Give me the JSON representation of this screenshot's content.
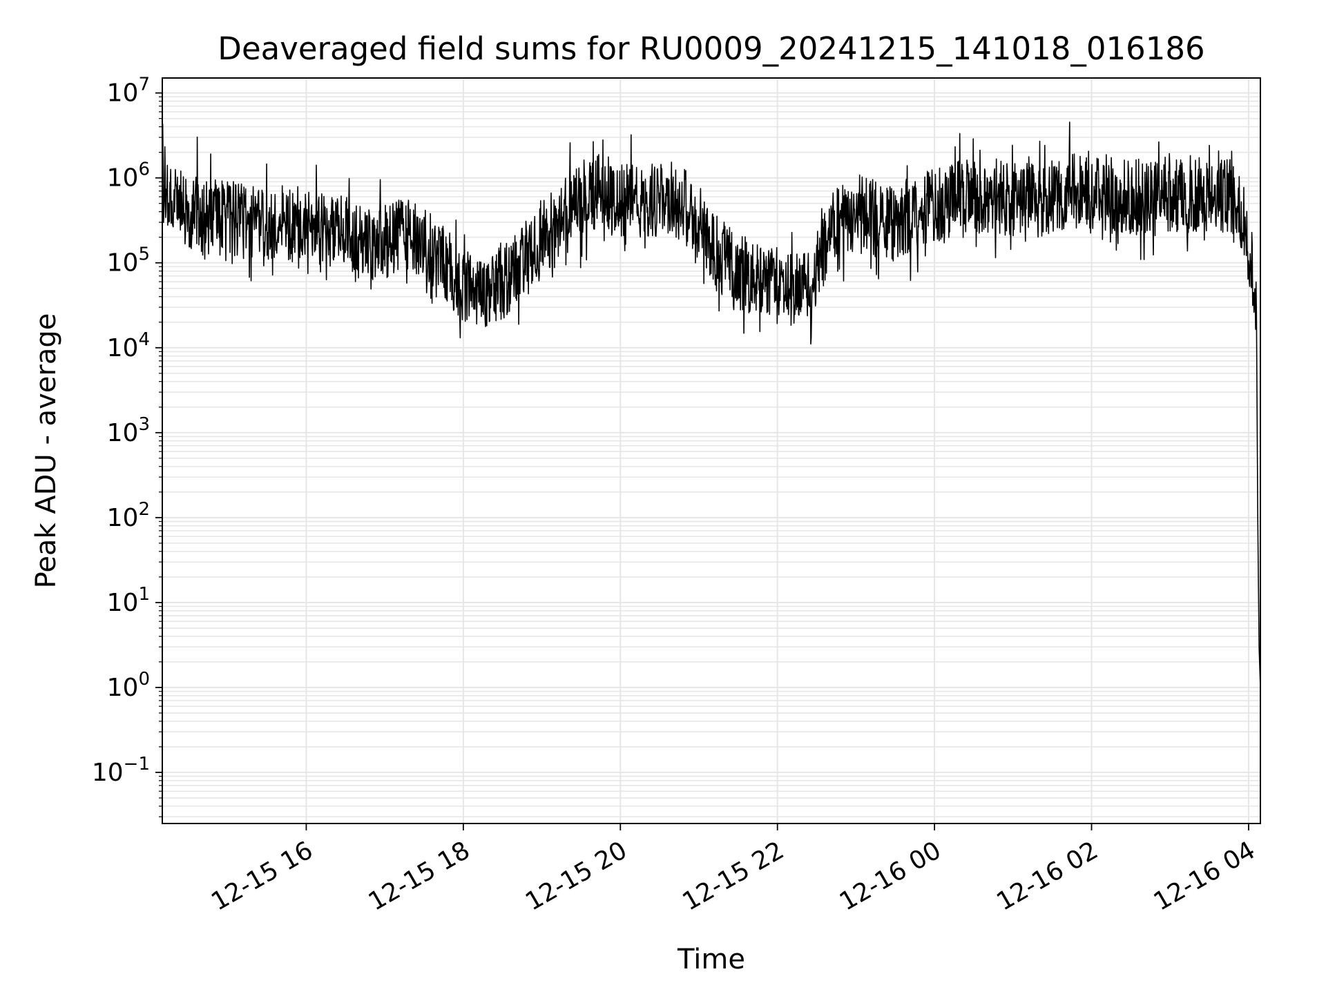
{
  "chart_data": {
    "type": "line",
    "title": "Deaveraged field sums for RU0009_20241215_141018_016186",
    "xlabel": "Time",
    "ylabel": "Peak ADU - average",
    "yscale": "log",
    "grid": true,
    "line_color": "#000000",
    "grid_color": "#e6e6e6",
    "x_tick_labels": [
      "12-15 16",
      "12-15 18",
      "12-15 20",
      "12-15 22",
      "12-16 00",
      "12-16 02",
      "12-16 04"
    ],
    "x_ticks": [
      "2024-12-15 16:00",
      "2024-12-15 18:00",
      "2024-12-15 20:00",
      "2024-12-15 22:00",
      "2024-12-16 00:00",
      "2024-12-16 02:00",
      "2024-12-16 04:00"
    ],
    "xlim": [
      "2024-12-15 14:10",
      "2024-12-16 04:09"
    ],
    "y_tick_labels": [
      {
        "base": "10",
        "exp": "7"
      },
      {
        "base": "10",
        "exp": "6"
      },
      {
        "base": "10",
        "exp": "5"
      },
      {
        "base": "10",
        "exp": "4"
      },
      {
        "base": "10",
        "exp": "3"
      },
      {
        "base": "10",
        "exp": "2"
      },
      {
        "base": "10",
        "exp": "1"
      },
      {
        "base": "10",
        "exp": "0"
      },
      {
        "base": "10",
        "exp": "−1"
      }
    ],
    "y_tick_values": [
      10000000,
      1000000,
      100000,
      10000,
      1000,
      100,
      10,
      1,
      0.1
    ],
    "ylim": [
      0.025,
      15000000
    ],
    "series": [
      {
        "x": [
          "2024-12-15 14:10",
          "2024-12-15 14:15",
          "2024-12-15 14:20",
          "2024-12-15 14:30",
          "2024-12-15 14:45",
          "2024-12-15 15:00",
          "2024-12-15 15:15",
          "2024-12-15 15:30",
          "2024-12-15 15:45",
          "2024-12-15 16:00",
          "2024-12-15 16:15",
          "2024-12-15 16:30",
          "2024-12-15 16:45",
          "2024-12-15 17:00",
          "2024-12-15 17:15",
          "2024-12-15 17:30",
          "2024-12-15 17:45",
          "2024-12-15 18:00",
          "2024-12-15 18:15",
          "2024-12-15 18:30",
          "2024-12-15 18:45",
          "2024-12-15 19:00",
          "2024-12-15 19:15",
          "2024-12-15 19:30",
          "2024-12-15 19:45",
          "2024-12-15 20:00",
          "2024-12-15 20:15",
          "2024-12-15 20:30",
          "2024-12-15 20:45",
          "2024-12-15 21:00",
          "2024-12-15 21:15",
          "2024-12-15 21:30",
          "2024-12-15 21:45",
          "2024-12-15 22:00",
          "2024-12-15 22:15",
          "2024-12-15 22:30",
          "2024-12-15 22:45",
          "2024-12-15 23:00",
          "2024-12-15 23:15",
          "2024-12-15 23:30",
          "2024-12-15 23:45",
          "2024-12-16 00:00",
          "2024-12-16 00:15",
          "2024-12-16 00:30",
          "2024-12-16 00:45",
          "2024-12-16 01:00",
          "2024-12-16 01:15",
          "2024-12-16 01:30",
          "2024-12-16 01:45",
          "2024-12-16 02:00",
          "2024-12-16 02:15",
          "2024-12-16 02:30",
          "2024-12-16 02:45",
          "2024-12-16 03:00",
          "2024-12-16 03:15",
          "2024-12-16 03:30",
          "2024-12-16 03:45",
          "2024-12-16 03:50",
          "2024-12-16 03:55",
          "2024-12-16 04:00",
          "2024-12-16 04:03",
          "2024-12-16 04:05",
          "2024-12-16 04:06",
          "2024-12-16 04:07",
          "2024-12-16 04:08",
          "2024-12-16 04:09"
        ],
        "y": [
          1000000,
          700000,
          550000,
          400000,
          350000,
          330000,
          320000,
          310000,
          300000,
          290000,
          260000,
          210000,
          170000,
          180000,
          220000,
          160000,
          100000,
          50000,
          45000,
          60000,
          100000,
          200000,
          320000,
          600000,
          700000,
          550000,
          480000,
          600000,
          520000,
          300000,
          120000,
          80000,
          60000,
          55000,
          50000,
          80000,
          300000,
          400000,
          350000,
          300000,
          400000,
          500000,
          550000,
          600000,
          620000,
          580000,
          600000,
          650000,
          700000,
          650000,
          620000,
          600000,
          580000,
          650000,
          600000,
          650000,
          600000,
          550000,
          400000,
          150000,
          90000,
          60000,
          20000,
          100,
          3,
          1
        ]
      }
    ]
  }
}
